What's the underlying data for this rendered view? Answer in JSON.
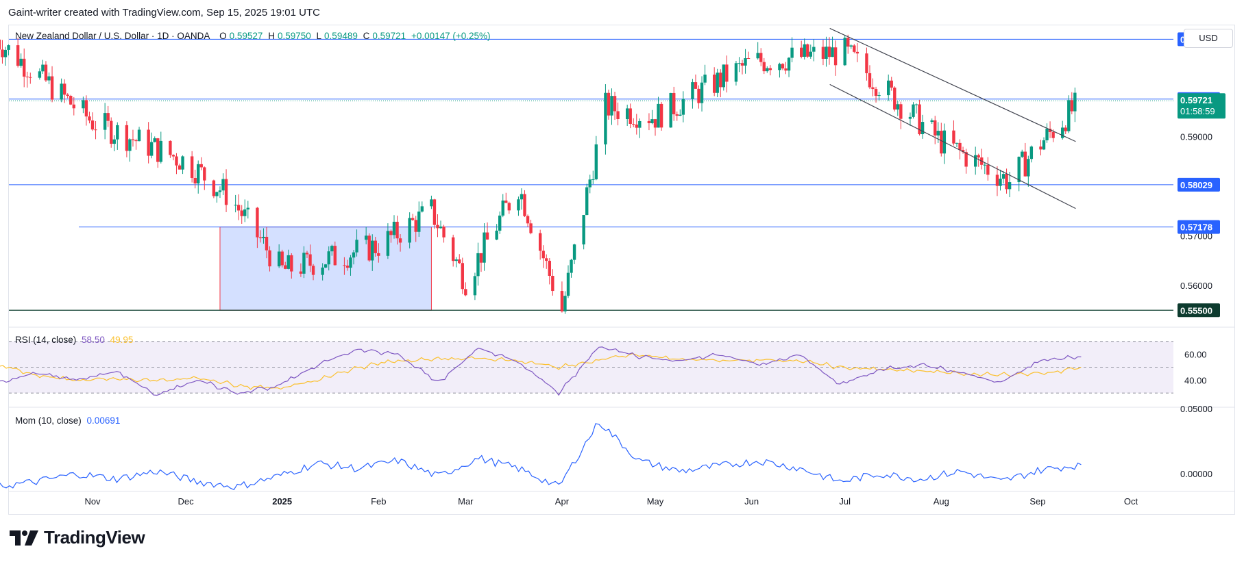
{
  "header": {
    "credit": "Gaint-writer created with TradingView.com, Sep 15, 2025 19:01 UTC"
  },
  "legend": {
    "symbol": "New Zealand Dollar / U.S. Dollar · 1D · OANDA",
    "open_label": "O",
    "open": "0.59527",
    "high_label": "H",
    "high": "0.59750",
    "low_label": "L",
    "low": "0.59489",
    "close_label": "C",
    "close": "0.59721",
    "change": "+0.00147 (+0.25%)"
  },
  "currency_button": "USD",
  "price_axis": {
    "ticks": [
      "0.59000",
      "0.57000",
      "0.56000"
    ],
    "ticks_values": [
      0.59,
      0.57,
      0.56
    ],
    "level_labels": [
      {
        "text": "0.60960",
        "value": 0.6096,
        "color": "#2962ff"
      },
      {
        "text": "0.59756",
        "value": 0.59756,
        "color": "#2962ff"
      },
      {
        "text": "0.58029",
        "value": 0.58029,
        "color": "#2962ff"
      },
      {
        "text": "0.57178",
        "value": 0.57178,
        "color": "#2962ff"
      },
      {
        "text": "0.55500",
        "value": 0.555,
        "color": "#0d3b2e"
      }
    ],
    "last_price": "0.59721",
    "countdown": "01:58:59"
  },
  "rsi_pane": {
    "title": "RSI (14, close)",
    "rsi_value": "58.50",
    "ma_value": "49.95",
    "ticks": [
      "60.00",
      "40.00"
    ],
    "rsi_color": "#7e57c2",
    "ma_color": "#fbc02d"
  },
  "mom_pane": {
    "title": "Mom (10, close)",
    "value": "0.00691",
    "ticks": [
      "0.05000",
      "0.00000"
    ],
    "color": "#2962ff"
  },
  "time_axis": {
    "labels": [
      "Nov",
      "Dec",
      "2025",
      "Feb",
      "Mar",
      "Apr",
      "May",
      "Jun",
      "Jul",
      "Aug",
      "Sep",
      "Oct"
    ]
  },
  "footer": {
    "brand": "TradingView"
  },
  "colors": {
    "up": "#089981",
    "down": "#f23645",
    "level": "#2962ff"
  },
  "chart_data": [
    {
      "type": "candlestick",
      "title": "New Zealand Dollar / U.S. Dollar · 1D · OANDA",
      "ylim": [
        0.552,
        0.612
      ],
      "x": [
        "Oct 2024",
        "Nov",
        "Dec",
        "2025",
        "Feb",
        "Mar",
        "Apr",
        "May",
        "Jun",
        "Jul",
        "Aug",
        "Sep",
        "Oct"
      ],
      "close_path": [
        [
          "Oct",
          0.6096
        ],
        [
          "Nov",
          0.593
        ],
        [
          "Dec",
          0.585
        ],
        [
          "Dec-mid",
          0.578
        ],
        [
          "2025",
          0.563
        ],
        [
          "Feb",
          0.568
        ],
        [
          "Feb-end",
          0.575
        ],
        [
          "Mar",
          0.561
        ],
        [
          "Mar-mid",
          0.58
        ],
        [
          "Apr",
          0.555
        ],
        [
          "Apr-mid",
          0.596
        ],
        [
          "May",
          0.594
        ],
        [
          "Jun",
          0.605
        ],
        [
          "Jul",
          0.607
        ],
        [
          "Aug",
          0.589
        ],
        [
          "Aug-end",
          0.581
        ],
        [
          "Sep",
          0.588
        ],
        [
          "Sep-15",
          0.59721
        ]
      ],
      "horizontal_levels": [
        0.6096,
        0.59756,
        0.58029,
        0.57178,
        0.555
      ],
      "range_box": {
        "from": "Dec-mid",
        "to": "Feb-end",
        "top": 0.57178,
        "bottom": 0.555
      },
      "channel": {
        "upper": [
          [
            "Jul",
            0.6096
          ],
          [
            "Sep-15",
            0.589
          ]
        ],
        "lower": [
          [
            "Jul",
            0.599
          ],
          [
            "Sep-end",
            0.5755
          ]
        ]
      }
    },
    {
      "type": "line",
      "title": "RSI (14, close)",
      "ylim": [
        20,
        80
      ],
      "series": [
        {
          "values": [
            38,
            45,
            40,
            47,
            28,
            40,
            30,
            35,
            52,
            64,
            60,
            38,
            65,
            54,
            30,
            66,
            58,
            55,
            60,
            52,
            60,
            36,
            48,
            52,
            46,
            38,
            55,
            58
          ]
        },
        {
          "values": [
            52,
            44,
            40,
            41,
            39,
            42,
            36,
            33,
            40,
            50,
            55,
            56,
            57,
            55,
            50,
            56,
            60,
            56,
            55,
            56,
            55,
            50,
            48,
            47,
            45,
            44,
            45,
            50
          ]
        }
      ]
    },
    {
      "type": "line",
      "title": "Mom (10, close)",
      "ylim": [
        -0.012,
        0.05
      ],
      "series": [
        {
          "values": [
            -0.01,
            -0.006,
            0.0,
            -0.004,
            0.002,
            -0.006,
            -0.01,
            -0.002,
            0.008,
            0.004,
            0.01,
            -0.002,
            0.012,
            0.004,
            -0.01,
            0.04,
            0.01,
            0.002,
            0.006,
            0.01,
            0.004,
            -0.006,
            0.0,
            -0.004,
            0.002,
            -0.006,
            0.003,
            0.007
          ]
        }
      ]
    }
  ]
}
